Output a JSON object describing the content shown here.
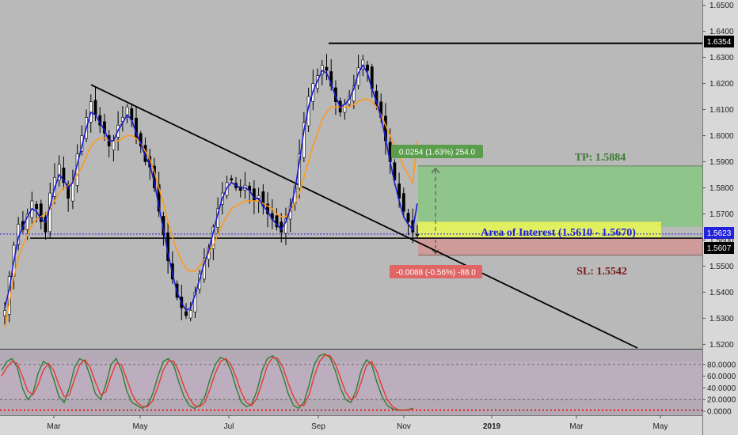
{
  "chart_data": [
    {
      "type": "candlestick",
      "title": "",
      "x_ticks": [
        "Mar",
        "May",
        "Jul",
        "Sep",
        "Nov",
        "2019",
        "Mar",
        "May"
      ],
      "y_ticks": [
        "1.5200",
        "1.5300",
        "1.5400",
        "1.5500",
        "1.5600",
        "1.5700",
        "1.5800",
        "1.5900",
        "1.6000",
        "1.6100",
        "1.6200",
        "1.6300",
        "1.6400",
        "1.6500"
      ],
      "ylim": [
        1.5195,
        1.6505
      ],
      "price_badges": {
        "high": "1.6354",
        "current": "1.5623",
        "support": "1.5607"
      },
      "levels": {
        "resistance": 1.6354,
        "support": 1.5607,
        "current": 1.5623
      },
      "zones": {
        "take_profit": {
          "label": "TP: 1.5884",
          "top": 1.5884,
          "bottom": 1.565
        },
        "interest": {
          "label": "Area of Interest (1.5610 - 1.5670)",
          "top": 1.567,
          "bottom": 1.561
        },
        "stop_loss": {
          "label": "SL: 1.5542",
          "top": 1.5607,
          "bottom": 1.5542
        }
      },
      "measure_labels": {
        "profit": "0.0254 (1.63%) 254.0",
        "loss": "-0.0088 (-0.56%) -88.0"
      },
      "trendline": {
        "from": [
          0.245,
          1.6195
        ],
        "to": [
          0.58,
          1.556
        ]
      },
      "series": [
        {
          "kind": "close",
          "values": [
            1.533,
            1.546,
            1.558,
            1.566,
            1.564,
            1.57,
            1.575,
            1.572,
            1.567,
            1.563,
            1.578,
            1.584,
            1.589,
            1.582,
            1.576,
            1.582,
            1.593,
            1.6,
            1.607,
            1.613,
            1.608,
            1.604,
            1.601,
            1.596,
            1.598,
            1.604,
            1.607,
            1.611,
            1.606,
            1.599,
            1.596,
            1.59,
            1.588,
            1.58,
            1.571,
            1.562,
            1.552,
            1.545,
            1.538,
            1.534,
            1.531,
            1.533,
            1.54,
            1.547,
            1.553,
            1.557,
            1.565,
            1.572,
            1.578,
            1.582,
            1.583,
            1.58,
            1.579,
            1.581,
            1.579,
            1.575,
            1.577,
            1.573,
            1.57,
            1.568,
            1.565,
            1.563,
            1.568,
            1.573,
            1.58,
            1.593,
            1.605,
            1.615,
            1.62,
            1.623,
            1.627,
            1.625,
            1.619,
            1.613,
            1.609,
            1.612,
            1.615,
            1.619,
            1.626,
            1.629,
            1.625,
            1.618,
            1.612,
            1.607,
            1.598,
            1.59,
            1.583,
            1.576,
            1.571,
            1.567,
            1.563,
            1.562
          ]
        },
        {
          "kind": "ma_fast",
          "color": "#1a1ad4",
          "values": [
            1.534,
            1.541,
            1.552,
            1.561,
            1.565,
            1.569,
            1.572,
            1.571,
            1.568,
            1.567,
            1.573,
            1.58,
            1.585,
            1.583,
            1.58,
            1.582,
            1.589,
            1.596,
            1.603,
            1.609,
            1.608,
            1.605,
            1.602,
            1.598,
            1.598,
            1.602,
            1.605,
            1.608,
            1.606,
            1.601,
            1.597,
            1.592,
            1.589,
            1.582,
            1.573,
            1.564,
            1.555,
            1.547,
            1.54,
            1.536,
            1.533,
            1.534,
            1.539,
            1.545,
            1.551,
            1.556,
            1.563,
            1.57,
            1.576,
            1.58,
            1.582,
            1.581,
            1.58,
            1.58,
            1.579,
            1.576,
            1.576,
            1.573,
            1.571,
            1.568,
            1.566,
            1.564,
            1.567,
            1.572,
            1.579,
            1.59,
            1.602,
            1.611,
            1.617,
            1.621,
            1.625,
            1.624,
            1.62,
            1.615,
            1.611,
            1.612,
            1.614,
            1.618,
            1.624,
            1.627,
            1.624,
            1.618,
            1.613,
            1.607,
            1.599,
            1.59,
            1.582,
            1.575,
            1.569,
            1.566,
            1.564,
            1.574
          ]
        },
        {
          "kind": "ma_slow",
          "color": "#ff9a1a",
          "values": [
            1.526,
            1.536,
            1.546,
            1.553,
            1.558,
            1.562,
            1.566,
            1.568,
            1.569,
            1.57,
            1.572,
            1.575,
            1.578,
            1.58,
            1.581,
            1.582,
            1.585,
            1.588,
            1.592,
            1.596,
            1.598,
            1.599,
            1.599,
            1.598,
            1.598,
            1.598,
            1.599,
            1.6,
            1.6,
            1.599,
            1.597,
            1.594,
            1.591,
            1.586,
            1.58,
            1.574,
            1.567,
            1.561,
            1.556,
            1.552,
            1.549,
            1.548,
            1.548,
            1.55,
            1.552,
            1.555,
            1.558,
            1.562,
            1.566,
            1.569,
            1.572,
            1.573,
            1.574,
            1.575,
            1.575,
            1.575,
            1.575,
            1.574,
            1.573,
            1.572,
            1.57,
            1.569,
            1.569,
            1.571,
            1.574,
            1.578,
            1.584,
            1.59,
            1.596,
            1.601,
            1.606,
            1.609,
            1.611,
            1.611,
            1.611,
            1.611,
            1.611,
            1.612,
            1.613,
            1.614,
            1.614,
            1.613,
            1.611,
            1.608,
            1.604,
            1.6,
            1.596,
            1.592,
            1.588,
            1.585,
            1.582,
            1.598
          ]
        }
      ]
    },
    {
      "type": "line",
      "title": "",
      "y_ticks": [
        "0.0000",
        "20.0000",
        "40.0000",
        "60.0000",
        "80.0000"
      ],
      "ylim": [
        0,
        100
      ],
      "reference_lines": [
        80,
        20,
        2
      ],
      "series": [
        {
          "kind": "k",
          "color": "#2e7d32",
          "values": [
            70,
            85,
            90,
            75,
            40,
            20,
            30,
            65,
            85,
            80,
            55,
            25,
            15,
            40,
            75,
            90,
            85,
            60,
            30,
            20,
            45,
            80,
            90,
            70,
            35,
            15,
            10,
            5,
            10,
            30,
            60,
            85,
            90,
            80,
            50,
            25,
            10,
            5,
            10,
            25,
            55,
            80,
            92,
            88,
            70,
            40,
            15,
            8,
            12,
            35,
            70,
            90,
            95,
            85,
            60,
            30,
            10,
            5,
            15,
            45,
            80,
            95,
            98,
            92,
            70,
            40,
            20,
            15,
            35,
            70,
            88,
            80,
            50,
            25,
            10,
            4,
            2,
            2,
            3,
            5
          ]
        },
        {
          "kind": "d",
          "color": "#e53935",
          "values": [
            60,
            75,
            85,
            82,
            60,
            35,
            28,
            45,
            70,
            82,
            70,
            45,
            25,
            28,
            55,
            80,
            88,
            75,
            50,
            28,
            33,
            60,
            82,
            80,
            55,
            30,
            15,
            8,
            8,
            18,
            42,
            70,
            86,
            86,
            68,
            42,
            22,
            10,
            8,
            15,
            38,
            65,
            85,
            90,
            80,
            58,
            32,
            15,
            10,
            22,
            50,
            78,
            92,
            90,
            75,
            48,
            25,
            10,
            10,
            28,
            60,
            85,
            96,
            95,
            82,
            58,
            33,
            20,
            25,
            50,
            78,
            85,
            68,
            42,
            20,
            8,
            3,
            2,
            2,
            4
          ]
        }
      ]
    }
  ]
}
